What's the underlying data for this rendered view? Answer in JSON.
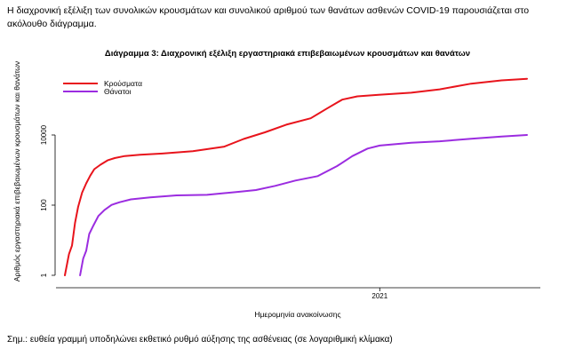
{
  "intro_text": "Η διαχρονική εξέλιξη των συνολικών κρουσμάτων και συνολικού αριθμού των θανάτων ασθενών COVID-19 παρουσιάζεται στο ακόλουθο διάγραμμα.",
  "note_text": "Σημ.: ευθεία γραμμή υποδηλώνει εκθετικό ρυθμό αύξησης της ασθένειας (σε λογαριθμική κλίμακα)",
  "chart_data": {
    "type": "line",
    "title": "Διάγραμμα 3: Διαχρονική εξέλιξη εργαστηριακά επιβεβαιωμένων κρουσμάτων και θανάτων",
    "xlabel": "Ημερομηνία ανακοίνωσης",
    "ylabel": "Αριθμός εργαστηριακά επιβεβαιωμένων κρουσμάτων και θανάτων",
    "y_scale": "log",
    "ylim": [
      1,
      400000
    ],
    "y_ticks": [
      {
        "value": 1,
        "label": "1"
      },
      {
        "value": 100,
        "label": "100"
      },
      {
        "value": 10000,
        "label": "10000"
      }
    ],
    "x_range": [
      "2020-02-26",
      "2021-05-26"
    ],
    "x_ticks": [
      {
        "value": "2021-01-01",
        "label": "2021"
      }
    ],
    "legend_position": "top-left",
    "series": [
      {
        "name": "Κρούσματα",
        "color": "#e8141c",
        "x": [
          "2020-02-26",
          "2020-03-01",
          "2020-03-04",
          "2020-03-07",
          "2020-03-10",
          "2020-03-14",
          "2020-03-18",
          "2020-03-22",
          "2020-03-26",
          "2020-04-01",
          "2020-04-08",
          "2020-04-15",
          "2020-04-25",
          "2020-05-10",
          "2020-06-01",
          "2020-07-01",
          "2020-08-01",
          "2020-08-20",
          "2020-09-10",
          "2020-10-01",
          "2020-10-25",
          "2020-11-10",
          "2020-11-25",
          "2020-12-10",
          "2020-12-31",
          "2021-02-01",
          "2021-03-01",
          "2021-04-01",
          "2021-05-01",
          "2021-05-26"
        ],
        "values": [
          1,
          4,
          7,
          31,
          89,
          228,
          418,
          695,
          1060,
          1415,
          1884,
          2192,
          2506,
          2726,
          2952,
          3432,
          4662,
          7684,
          11900,
          19613,
          29992,
          56966,
          102000,
          126000,
          140000,
          160000,
          200000,
          290000,
          360000,
          400000
        ]
      },
      {
        "name": "Θάνατοι",
        "color": "#9b2ce0",
        "x": [
          "2020-03-12",
          "2020-03-15",
          "2020-03-18",
          "2020-03-21",
          "2020-03-25",
          "2020-03-30",
          "2020-04-05",
          "2020-04-12",
          "2020-04-20",
          "2020-05-01",
          "2020-05-20",
          "2020-06-15",
          "2020-07-15",
          "2020-08-15",
          "2020-09-01",
          "2020-09-20",
          "2020-10-10",
          "2020-11-01",
          "2020-11-20",
          "2020-12-05",
          "2020-12-20",
          "2021-01-01",
          "2021-02-01",
          "2021-03-01",
          "2021-04-01",
          "2021-05-01",
          "2021-05-26"
        ],
        "values": [
          1,
          3,
          5,
          15,
          26,
          49,
          73,
          102,
          121,
          146,
          166,
          190,
          197,
          240,
          270,
          355,
          504,
          673,
          1300,
          2500,
          4100,
          5000,
          6000,
          6600,
          7800,
          9000,
          10000
        ]
      }
    ]
  }
}
